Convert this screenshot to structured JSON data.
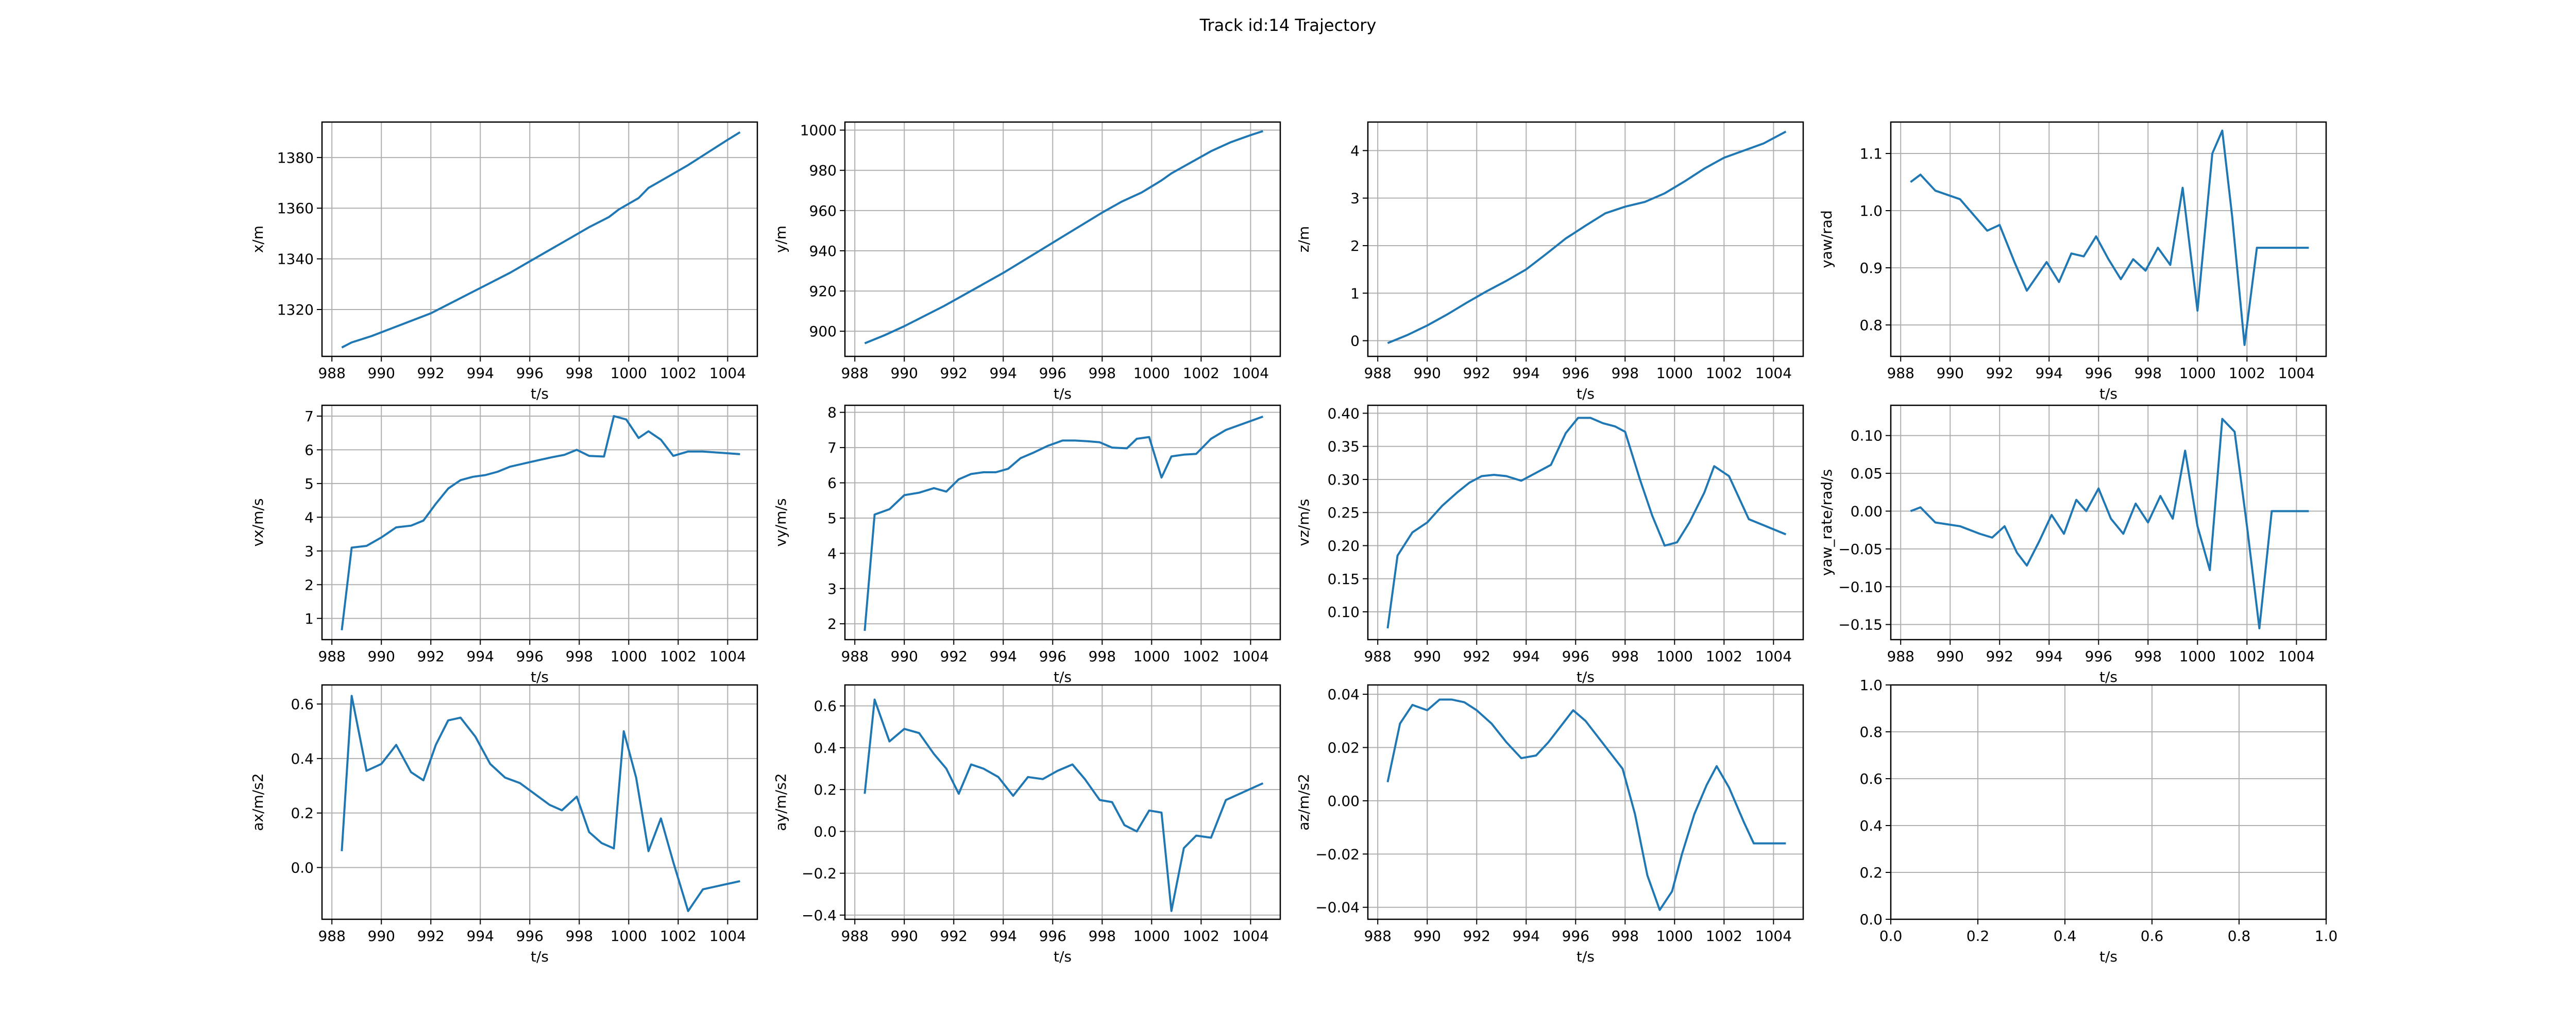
{
  "title": "Track id:14 Trajectory",
  "colors": {
    "line": "#1f77b4",
    "grid": "#b0b0b0",
    "axes": "#000000"
  },
  "chart_data": [
    {
      "type": "line",
      "xlabel": "t/s",
      "ylabel": "x/m",
      "xlim": [
        987.6,
        1005.2
      ],
      "ylim": [
        1301.5,
        1394.0
      ],
      "xticks": [
        988,
        990,
        992,
        994,
        996,
        998,
        1000,
        1002,
        1004
      ],
      "yticks": [
        1320,
        1340,
        1360,
        1380
      ],
      "grid": true,
      "x": [
        988.4,
        988.8,
        989.6,
        990.4,
        991.2,
        992.0,
        992.8,
        993.6,
        994.4,
        995.2,
        996.0,
        996.8,
        997.6,
        998.4,
        999.2,
        999.6,
        1000.4,
        1000.8,
        1001.6,
        1002.4,
        1003.2,
        1004.0,
        1004.5
      ],
      "y": [
        1305.0,
        1307.0,
        1309.5,
        1312.5,
        1315.5,
        1318.5,
        1322.5,
        1326.5,
        1330.5,
        1334.5,
        1339.0,
        1343.5,
        1348.0,
        1352.5,
        1356.5,
        1359.5,
        1364.0,
        1368.0,
        1372.5,
        1377.0,
        1382.0,
        1387.0,
        1390.0
      ]
    },
    {
      "type": "line",
      "xlabel": "t/s",
      "ylabel": "y/m",
      "xlim": [
        987.6,
        1005.2
      ],
      "ylim": [
        887.5,
        1004.0
      ],
      "xticks": [
        988,
        990,
        992,
        994,
        996,
        998,
        1000,
        1002,
        1004
      ],
      "yticks": [
        900,
        920,
        940,
        960,
        980,
        1000
      ],
      "grid": true,
      "x": [
        988.4,
        989.2,
        990.0,
        990.8,
        991.6,
        992.4,
        993.2,
        994.0,
        994.8,
        995.6,
        996.4,
        997.2,
        998.0,
        998.8,
        999.6,
        1000.0,
        1000.4,
        1000.8,
        1001.6,
        1002.4,
        1003.2,
        1004.0,
        1004.5
      ],
      "y": [
        894.0,
        898.0,
        902.5,
        907.5,
        912.5,
        918.0,
        923.5,
        929.0,
        935.0,
        941.0,
        947.0,
        953.0,
        959.0,
        964.5,
        969.0,
        972.0,
        975.0,
        978.5,
        984.0,
        989.5,
        994.0,
        997.5,
        999.5
      ]
    },
    {
      "type": "line",
      "xlabel": "t/s",
      "ylabel": "z/m",
      "xlim": [
        987.6,
        1005.2
      ],
      "ylim": [
        -0.33,
        4.6
      ],
      "xticks": [
        988,
        990,
        992,
        994,
        996,
        998,
        1000,
        1002,
        1004
      ],
      "yticks": [
        0,
        1,
        2,
        3,
        4
      ],
      "grid": true,
      "x": [
        988.4,
        989.2,
        990.0,
        990.8,
        991.6,
        992.4,
        993.2,
        994.0,
        994.8,
        995.6,
        996.4,
        997.2,
        998.0,
        998.8,
        999.6,
        1000.4,
        1001.2,
        1002.0,
        1002.8,
        1003.6,
        1004.5
      ],
      "y": [
        -0.05,
        0.12,
        0.32,
        0.55,
        0.8,
        1.04,
        1.26,
        1.5,
        1.82,
        2.15,
        2.42,
        2.68,
        2.82,
        2.92,
        3.1,
        3.35,
        3.62,
        3.85,
        4.0,
        4.15,
        4.4
      ]
    },
    {
      "type": "line",
      "xlabel": "t/s",
      "ylabel": "yaw/rad",
      "xlim": [
        987.6,
        1005.2
      ],
      "ylim": [
        0.745,
        1.155
      ],
      "xticks": [
        988,
        990,
        992,
        994,
        996,
        998,
        1000,
        1002,
        1004
      ],
      "yticks": [
        0.8,
        0.9,
        1.0,
        1.1
      ],
      "grid": true,
      "x": [
        988.4,
        988.8,
        989.4,
        990.4,
        991.5,
        992.0,
        992.6,
        993.1,
        993.9,
        994.4,
        994.9,
        995.4,
        995.9,
        996.4,
        996.9,
        997.4,
        997.9,
        998.4,
        998.9,
        999.4,
        1000.0,
        1000.6,
        1001.0,
        1001.4,
        1001.9,
        1002.4,
        1002.9,
        1003.5,
        1004.5
      ],
      "y": [
        1.05,
        1.063,
        1.035,
        1.02,
        0.965,
        0.975,
        0.91,
        0.86,
        0.91,
        0.875,
        0.925,
        0.92,
        0.955,
        0.915,
        0.88,
        0.915,
        0.895,
        0.935,
        0.905,
        1.04,
        0.825,
        1.1,
        1.14,
        0.99,
        0.765,
        0.935,
        0.935,
        0.935,
        0.935
      ]
    },
    {
      "type": "line",
      "xlabel": "t/s",
      "ylabel": "vx/m/s",
      "xlim": [
        987.6,
        1005.2
      ],
      "ylim": [
        0.37,
        7.32
      ],
      "xticks": [
        988,
        990,
        992,
        994,
        996,
        998,
        1000,
        1002,
        1004
      ],
      "yticks": [
        1,
        2,
        3,
        4,
        5,
        6,
        7
      ],
      "grid": true,
      "x": [
        988.4,
        988.8,
        989.4,
        990.0,
        990.6,
        991.2,
        991.7,
        992.2,
        992.7,
        993.2,
        993.7,
        994.2,
        994.7,
        995.2,
        995.8,
        996.4,
        996.9,
        997.4,
        997.9,
        998.4,
        999.0,
        999.4,
        999.9,
        1000.4,
        1000.8,
        1001.3,
        1001.8,
        1002.4,
        1003.0,
        1004.5
      ],
      "y": [
        0.65,
        3.1,
        3.15,
        3.4,
        3.7,
        3.75,
        3.9,
        4.4,
        4.85,
        5.1,
        5.2,
        5.25,
        5.35,
        5.5,
        5.6,
        5.7,
        5.78,
        5.85,
        6.0,
        5.82,
        5.8,
        7.0,
        6.9,
        6.35,
        6.55,
        6.3,
        5.82,
        5.95,
        5.95,
        5.87
      ]
    },
    {
      "type": "line",
      "xlabel": "t/s",
      "ylabel": "vy/m/s",
      "xlim": [
        987.6,
        1005.2
      ],
      "ylim": [
        1.55,
        8.2
      ],
      "xticks": [
        988,
        990,
        992,
        994,
        996,
        998,
        1000,
        1002,
        1004
      ],
      "yticks": [
        2,
        3,
        4,
        5,
        6,
        7,
        8
      ],
      "grid": true,
      "x": [
        988.4,
        988.8,
        989.4,
        990.0,
        990.6,
        991.2,
        991.7,
        992.2,
        992.7,
        993.2,
        993.7,
        994.2,
        994.7,
        995.2,
        995.8,
        996.4,
        996.9,
        997.4,
        997.9,
        998.4,
        999.0,
        999.4,
        999.9,
        1000.4,
        1000.8,
        1001.3,
        1001.8,
        1002.4,
        1003.0,
        1004.5
      ],
      "y": [
        1.8,
        5.1,
        5.25,
        5.65,
        5.72,
        5.85,
        5.75,
        6.1,
        6.25,
        6.3,
        6.3,
        6.4,
        6.7,
        6.85,
        7.05,
        7.2,
        7.2,
        7.18,
        7.15,
        7.0,
        6.98,
        7.25,
        7.3,
        6.15,
        6.75,
        6.8,
        6.82,
        7.25,
        7.5,
        7.88
      ]
    },
    {
      "type": "line",
      "xlabel": "t/s",
      "ylabel": "vz/m/s",
      "xlim": [
        987.6,
        1005.2
      ],
      "ylim": [
        0.058,
        0.412
      ],
      "xticks": [
        988,
        990,
        992,
        994,
        996,
        998,
        1000,
        1002,
        1004
      ],
      "yticks": [
        0.1,
        0.15,
        0.2,
        0.25,
        0.3,
        0.35,
        0.4
      ],
      "grid": true,
      "x": [
        988.4,
        988.8,
        989.4,
        990.0,
        990.6,
        991.2,
        991.7,
        992.2,
        992.7,
        993.2,
        993.8,
        994.4,
        995.0,
        995.6,
        996.1,
        996.6,
        997.1,
        997.6,
        998.0,
        998.6,
        999.1,
        999.6,
        1000.1,
        1000.6,
        1001.2,
        1001.6,
        1002.2,
        1003.0,
        1004.5
      ],
      "y": [
        0.075,
        0.185,
        0.22,
        0.235,
        0.26,
        0.28,
        0.295,
        0.305,
        0.307,
        0.305,
        0.298,
        0.31,
        0.322,
        0.37,
        0.393,
        0.393,
        0.385,
        0.38,
        0.372,
        0.3,
        0.245,
        0.2,
        0.205,
        0.235,
        0.28,
        0.32,
        0.305,
        0.24,
        0.217
      ]
    },
    {
      "type": "line",
      "xlabel": "t/s",
      "ylabel": "yaw_rate/rad/s",
      "xlim": [
        987.6,
        1005.2
      ],
      "ylim": [
        -0.17,
        0.14
      ],
      "xticks": [
        988,
        990,
        992,
        994,
        996,
        998,
        1000,
        1002,
        1004
      ],
      "yticks": [
        -0.15,
        -0.1,
        -0.05,
        0.0,
        0.05,
        0.1
      ],
      "grid": true,
      "x": [
        988.4,
        988.8,
        989.4,
        990.4,
        991.2,
        991.7,
        992.2,
        992.7,
        993.1,
        993.6,
        994.1,
        994.6,
        995.1,
        995.5,
        996.0,
        996.5,
        997.0,
        997.5,
        998.0,
        998.5,
        999.0,
        999.5,
        1000.0,
        1000.5,
        1001.0,
        1001.5,
        1002.0,
        1002.5,
        1003.0,
        1003.6,
        1004.5
      ],
      "y": [
        0.0,
        0.005,
        -0.015,
        -0.02,
        -0.03,
        -0.035,
        -0.02,
        -0.055,
        -0.072,
        -0.04,
        -0.005,
        -0.03,
        0.015,
        0.0,
        0.03,
        -0.01,
        -0.03,
        0.01,
        -0.015,
        0.02,
        -0.01,
        0.08,
        -0.02,
        -0.078,
        0.122,
        0.105,
        -0.02,
        -0.155,
        0.0,
        0.0,
        0.0
      ]
    },
    {
      "type": "line",
      "xlabel": "t/s",
      "ylabel": "ax/m/s2",
      "xlim": [
        987.6,
        1005.2
      ],
      "ylim": [
        -0.19,
        0.67
      ],
      "xticks": [
        988,
        990,
        992,
        994,
        996,
        998,
        1000,
        1002,
        1004
      ],
      "yticks": [
        0.0,
        0.2,
        0.4,
        0.6
      ],
      "grid": true,
      "x": [
        988.4,
        988.8,
        989.4,
        990.0,
        990.6,
        991.2,
        991.7,
        992.2,
        992.7,
        993.2,
        993.8,
        994.4,
        995.0,
        995.6,
        996.2,
        996.8,
        997.3,
        997.9,
        998.4,
        998.9,
        999.4,
        999.8,
        1000.3,
        1000.8,
        1001.3,
        1001.8,
        1002.4,
        1003.0,
        1004.5
      ],
      "y": [
        0.06,
        0.63,
        0.355,
        0.38,
        0.45,
        0.35,
        0.32,
        0.45,
        0.54,
        0.55,
        0.48,
        0.38,
        0.33,
        0.31,
        0.27,
        0.23,
        0.21,
        0.26,
        0.13,
        0.09,
        0.07,
        0.5,
        0.33,
        0.06,
        0.18,
        0.02,
        -0.16,
        -0.08,
        -0.05
      ]
    },
    {
      "type": "line",
      "xlabel": "t/s",
      "ylabel": "ay/m/s2",
      "xlim": [
        987.6,
        1005.2
      ],
      "ylim": [
        -0.42,
        0.7
      ],
      "xticks": [
        988,
        990,
        992,
        994,
        996,
        998,
        1000,
        1002,
        1004
      ],
      "yticks": [
        -0.4,
        -0.2,
        0.0,
        0.2,
        0.4,
        0.6
      ],
      "grid": true,
      "x": [
        988.4,
        988.8,
        989.4,
        990.0,
        990.6,
        991.2,
        991.7,
        992.2,
        992.7,
        993.2,
        993.8,
        994.4,
        995.0,
        995.6,
        996.2,
        996.8,
        997.3,
        997.9,
        998.4,
        998.9,
        999.4,
        999.9,
        1000.4,
        1000.8,
        1001.3,
        1001.8,
        1002.4,
        1003.0,
        1004.5
      ],
      "y": [
        0.18,
        0.63,
        0.43,
        0.49,
        0.47,
        0.37,
        0.3,
        0.18,
        0.32,
        0.3,
        0.26,
        0.17,
        0.26,
        0.25,
        0.29,
        0.32,
        0.25,
        0.15,
        0.14,
        0.03,
        0.0,
        0.1,
        0.09,
        -0.38,
        -0.08,
        -0.02,
        -0.03,
        0.15,
        0.23
      ]
    },
    {
      "type": "line",
      "xlabel": "t/s",
      "ylabel": "az/m/s2",
      "xlim": [
        987.6,
        1005.2
      ],
      "ylim": [
        -0.0445,
        0.0435
      ],
      "xticks": [
        988,
        990,
        992,
        994,
        996,
        998,
        1000,
        1002,
        1004
      ],
      "yticks": [
        -0.04,
        -0.02,
        0.0,
        0.02,
        0.04
      ],
      "grid": true,
      "x": [
        988.4,
        988.9,
        989.4,
        990.0,
        990.5,
        991.0,
        991.5,
        992.0,
        992.6,
        993.2,
        993.8,
        994.4,
        994.9,
        995.4,
        995.9,
        996.4,
        996.9,
        997.4,
        997.9,
        998.4,
        998.9,
        999.4,
        999.9,
        1000.3,
        1000.8,
        1001.3,
        1001.7,
        1002.2,
        1002.8,
        1003.2,
        1004.5
      ],
      "y": [
        0.007,
        0.029,
        0.036,
        0.034,
        0.038,
        0.038,
        0.037,
        0.034,
        0.029,
        0.022,
        0.016,
        0.017,
        0.022,
        0.028,
        0.034,
        0.03,
        0.024,
        0.018,
        0.012,
        -0.005,
        -0.028,
        -0.041,
        -0.034,
        -0.02,
        -0.005,
        0.006,
        0.013,
        0.005,
        -0.008,
        -0.016,
        -0.016
      ]
    },
    {
      "type": "line",
      "xlabel": "t/s",
      "ylabel": "",
      "xlim": [
        0.0,
        1.0
      ],
      "ylim": [
        0.0,
        1.0
      ],
      "xticks": [
        0.0,
        0.2,
        0.4,
        0.6,
        0.8,
        1.0
      ],
      "yticks": [
        0.0,
        0.2,
        0.4,
        0.6,
        0.8,
        1.0
      ],
      "grid": true,
      "x": [],
      "y": []
    }
  ]
}
